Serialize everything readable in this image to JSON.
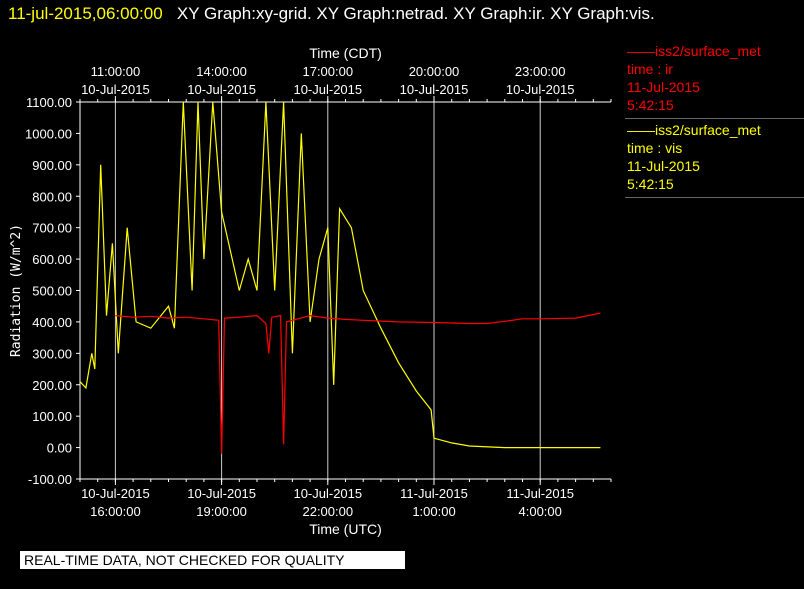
{
  "header": {
    "stamp": "11-jul-2015,06:00:00",
    "graphs": "XY Graph:xy-grid.  XY Graph:netrad.  XY Graph:ir.  XY Graph:vis."
  },
  "legend": [
    {
      "name": "iss2/surface_met",
      "field": "time : ir",
      "date": "11-Jul-2015",
      "time": "5:42:15",
      "color": "#ff0000"
    },
    {
      "name": "iss2/surface_met",
      "field": "time : vis",
      "date": "11-Jul-2015",
      "time": "5:42:15",
      "color": "#ffff00"
    }
  ],
  "notice": "REAL-TIME DATA, NOT CHECKED FOR QUALITY",
  "chart_data": {
    "type": "line",
    "top_axis_title": "Time (CDT)",
    "xlabel": "Time (UTC)",
    "ylabel": "Radiation (W/m^2)",
    "ylim": [
      -100,
      1100
    ],
    "xlim_hours_utc": [
      "2015-07-10 15:00",
      "2015-07-11 06:00"
    ],
    "y_ticks": [
      "-100.00",
      "0.00",
      "100.00",
      "200.00",
      "300.00",
      "400.00",
      "500.00",
      "600.00",
      "700.00",
      "800.00",
      "900.00",
      "1000.00",
      "1100.00"
    ],
    "top_ticks": [
      {
        "time": "11:00:00",
        "date": "10-Jul-2015",
        "at": "2015-07-10 16:00"
      },
      {
        "time": "14:00:00",
        "date": "10-Jul-2015",
        "at": "2015-07-10 19:00"
      },
      {
        "time": "17:00:00",
        "date": "10-Jul-2015",
        "at": "2015-07-10 22:00"
      },
      {
        "time": "20:00:00",
        "date": "10-Jul-2015",
        "at": "2015-07-11 01:00"
      },
      {
        "time": "23:00:00",
        "date": "10-Jul-2015",
        "at": "2015-07-11 04:00"
      }
    ],
    "bottom_ticks": [
      {
        "date": "10-Jul-2015",
        "time": "16:00:00"
      },
      {
        "date": "10-Jul-2015",
        "time": "19:00:00"
      },
      {
        "date": "10-Jul-2015",
        "time": "22:00:00"
      },
      {
        "date": "11-Jul-2015",
        "time": "1:00:00"
      },
      {
        "date": "11-Jul-2015",
        "time": "4:00:00"
      }
    ],
    "grid": true,
    "legend_position": "right",
    "series": [
      {
        "name": "iss2/surface_met time : ir",
        "color": "#ff0000",
        "points": [
          [
            "2015-07-10 16:00",
            420
          ],
          [
            "2015-07-10 16:30",
            415
          ],
          [
            "2015-07-10 17:00",
            418
          ],
          [
            "2015-07-10 17:30",
            412
          ],
          [
            "2015-07-10 18:00",
            415
          ],
          [
            "2015-07-10 18:30",
            410
          ],
          [
            "2015-07-10 18:55",
            405
          ],
          [
            "2015-07-10 19:00",
            -20
          ],
          [
            "2015-07-10 19:05",
            412
          ],
          [
            "2015-07-10 19:30",
            415
          ],
          [
            "2015-07-10 20:00",
            420
          ],
          [
            "2015-07-10 20:15",
            395
          ],
          [
            "2015-07-10 20:20",
            300
          ],
          [
            "2015-07-10 20:25",
            415
          ],
          [
            "2015-07-10 20:40",
            420
          ],
          [
            "2015-07-10 20:45",
            10
          ],
          [
            "2015-07-10 20:50",
            400
          ],
          [
            "2015-07-10 21:30",
            420
          ],
          [
            "2015-07-10 22:00",
            412
          ],
          [
            "2015-07-10 22:30",
            408
          ],
          [
            "2015-07-10 23:00",
            405
          ],
          [
            "2015-07-11 00:00",
            400
          ],
          [
            "2015-07-11 01:00",
            398
          ],
          [
            "2015-07-11 02:00",
            395
          ],
          [
            "2015-07-11 02:30",
            395
          ],
          [
            "2015-07-11 03:00",
            402
          ],
          [
            "2015-07-11 03:30",
            410
          ],
          [
            "2015-07-11 04:00",
            410
          ],
          [
            "2015-07-11 05:00",
            412
          ],
          [
            "2015-07-11 05:42",
            428
          ]
        ]
      },
      {
        "name": "iss2/surface_met time : vis",
        "color": "#ffff00",
        "points": [
          [
            "2015-07-10 15:00",
            210
          ],
          [
            "2015-07-10 15:10",
            190
          ],
          [
            "2015-07-10 15:20",
            300
          ],
          [
            "2015-07-10 15:25",
            250
          ],
          [
            "2015-07-10 15:35",
            900
          ],
          [
            "2015-07-10 15:45",
            420
          ],
          [
            "2015-07-10 15:55",
            650
          ],
          [
            "2015-07-10 16:05",
            300
          ],
          [
            "2015-07-10 16:20",
            700
          ],
          [
            "2015-07-10 16:35",
            400
          ],
          [
            "2015-07-10 17:00",
            380
          ],
          [
            "2015-07-10 17:30",
            450
          ],
          [
            "2015-07-10 17:40",
            380
          ],
          [
            "2015-07-10 17:55",
            1100
          ],
          [
            "2015-07-10 18:10",
            500
          ],
          [
            "2015-07-10 18:20",
            1100
          ],
          [
            "2015-07-10 18:30",
            600
          ],
          [
            "2015-07-10 18:45",
            1100
          ],
          [
            "2015-07-10 19:00",
            750
          ],
          [
            "2015-07-10 19:30",
            500
          ],
          [
            "2015-07-10 19:45",
            600
          ],
          [
            "2015-07-10 20:00",
            500
          ],
          [
            "2015-07-10 20:15",
            1100
          ],
          [
            "2015-07-10 20:30",
            500
          ],
          [
            "2015-07-10 20:45",
            1100
          ],
          [
            "2015-07-10 21:00",
            300
          ],
          [
            "2015-07-10 21:15",
            1000
          ],
          [
            "2015-07-10 21:30",
            400
          ],
          [
            "2015-07-10 21:45",
            600
          ],
          [
            "2015-07-10 22:00",
            700
          ],
          [
            "2015-07-10 22:10",
            200
          ],
          [
            "2015-07-10 22:20",
            760
          ],
          [
            "2015-07-10 22:40",
            700
          ],
          [
            "2015-07-10 22:55",
            550
          ],
          [
            "2015-07-10 23:00",
            500
          ],
          [
            "2015-07-10 23:30",
            380
          ],
          [
            "2015-07-11 00:00",
            270
          ],
          [
            "2015-07-11 00:30",
            180
          ],
          [
            "2015-07-11 00:55",
            120
          ],
          [
            "2015-07-11 01:00",
            30
          ],
          [
            "2015-07-11 01:30",
            15
          ],
          [
            "2015-07-11 02:00",
            5
          ],
          [
            "2015-07-11 03:00",
            0
          ],
          [
            "2015-07-11 05:42",
            0
          ]
        ]
      }
    ]
  }
}
